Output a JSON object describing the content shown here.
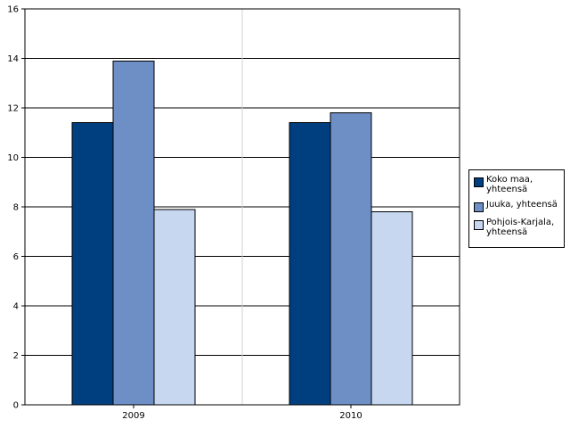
{
  "chart_data": {
    "type": "bar",
    "categories": [
      "2009",
      "2010"
    ],
    "series": [
      {
        "name": "Koko maa, yhteensä",
        "values": [
          11.4,
          11.4
        ],
        "color": "#003f7f"
      },
      {
        "name": "Juuka, yhteensä",
        "values": [
          13.9,
          11.8
        ],
        "color": "#6d8fc6"
      },
      {
        "name": "Pohjois-Karjala, yhteensä",
        "values": [
          7.9,
          7.8
        ],
        "color": "#c6d7ef"
      }
    ],
    "ylim": [
      0,
      16
    ],
    "yticks": [
      "0",
      "2",
      "4",
      "6",
      "8",
      "10",
      "12",
      "14",
      "16"
    ],
    "grid": true,
    "legend_position": "right",
    "title": "",
    "xlabel": "",
    "ylabel": ""
  }
}
